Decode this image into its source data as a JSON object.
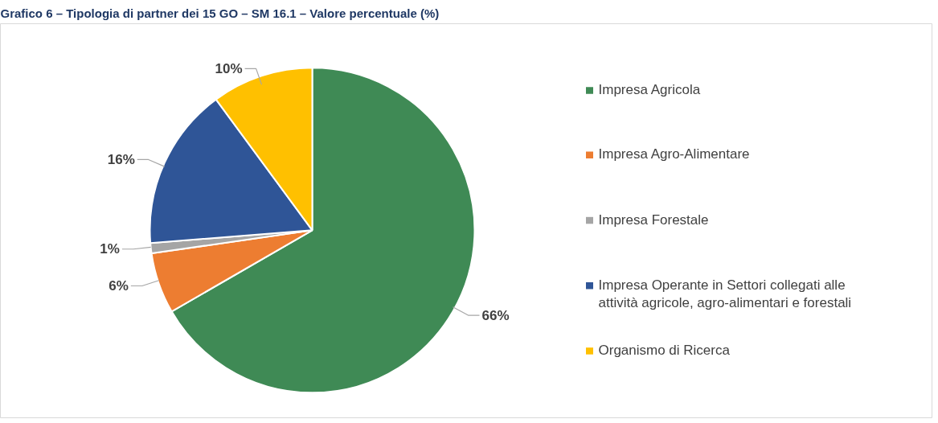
{
  "chart_data": {
    "type": "pie",
    "title": "Grafico 6 – Tipologia di partner dei 15 GO – SM 16.1 – Valore percentuale (%)",
    "categories": [
      "Impresa Agricola",
      "Impresa Agro-Alimentare",
      "Impresa Forestale",
      "Impresa Operante in Settori collegati alle attività agricole, agro-alimentari e forestali",
      "Organismo di Ricerca"
    ],
    "values": [
      66,
      6,
      1,
      16,
      10
    ],
    "colors": [
      "#3f8a55",
      "#ed7d31",
      "#a5a5a5",
      "#2f5597",
      "#ffc000"
    ],
    "value_labels": [
      "66%",
      "6%",
      "1%",
      "16%",
      "10%"
    ],
    "legend": "right"
  }
}
